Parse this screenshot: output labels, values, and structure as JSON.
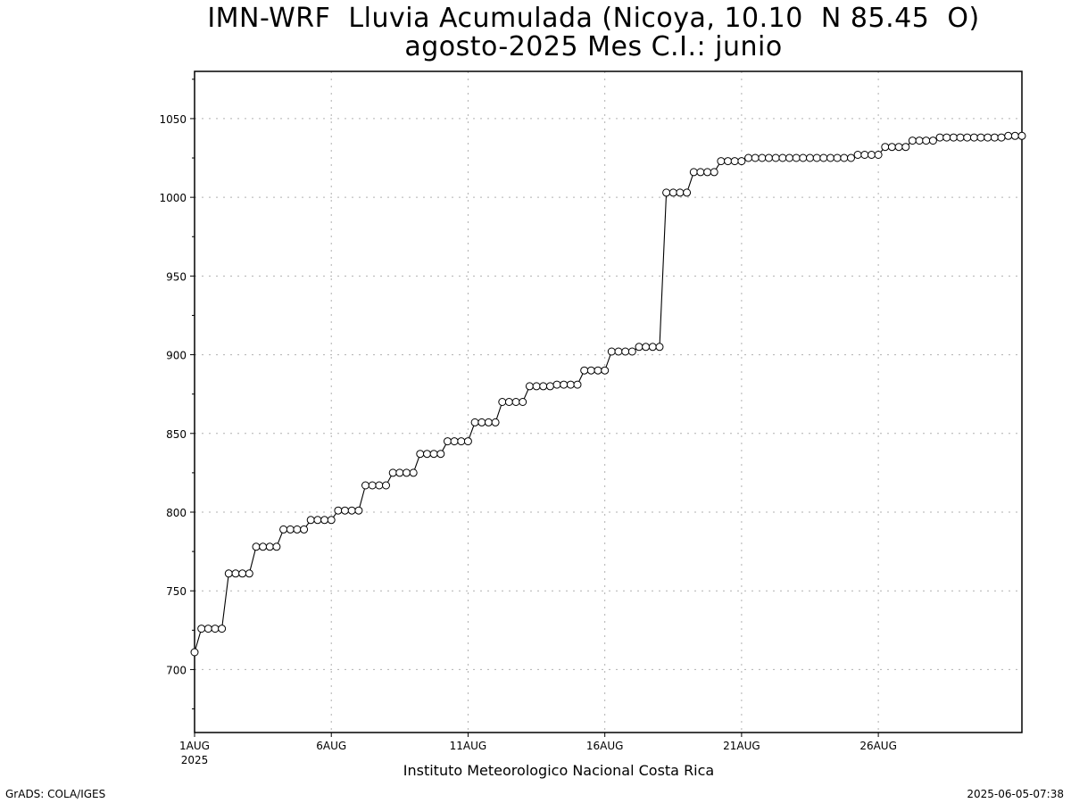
{
  "chart_data": {
    "type": "line",
    "title": "IMN-WRF  Lluvia Acumulada (Nicoya, 10.10  N 85.45  O)",
    "subtitle": "agosto-2025 Mes C.I.: junio",
    "xlabel": "Instituto Meteorologico Nacional Costa Rica",
    "ylabel": "",
    "x_unit": "day of August 2025",
    "xlim": [
      1,
      31.25
    ],
    "ylim": [
      660,
      1080
    ],
    "x_ticks": [
      {
        "value": 1,
        "label": "1AUG",
        "sublabel": "2025"
      },
      {
        "value": 6,
        "label": "6AUG"
      },
      {
        "value": 11,
        "label": "11AUG"
      },
      {
        "value": 16,
        "label": "16AUG"
      },
      {
        "value": 21,
        "label": "21AUG"
      },
      {
        "value": 26,
        "label": "26AUG"
      }
    ],
    "y_ticks": [
      700,
      750,
      800,
      850,
      900,
      950,
      1000,
      1050
    ],
    "grid": true,
    "marker": "open-circle",
    "series": [
      {
        "name": "",
        "values_step_hours": 6,
        "values": [
          711,
          726,
          726,
          726,
          726,
          761,
          761,
          761,
          761,
          778,
          778,
          778,
          778,
          789,
          789,
          789,
          789,
          795,
          795,
          795,
          795,
          801,
          801,
          801,
          801,
          817,
          817,
          817,
          817,
          825,
          825,
          825,
          825,
          837,
          837,
          837,
          837,
          845,
          845,
          845,
          845,
          857,
          857,
          857,
          857,
          870,
          870,
          870,
          870,
          880,
          880,
          880,
          880,
          881,
          881,
          881,
          881,
          890,
          890,
          890,
          890,
          902,
          902,
          902,
          902,
          905,
          905,
          905,
          905,
          1003,
          1003,
          1003,
          1003,
          1016,
          1016,
          1016,
          1016,
          1023,
          1023,
          1023,
          1023,
          1025,
          1025,
          1025,
          1025,
          1025,
          1025,
          1025,
          1025,
          1025,
          1025,
          1025,
          1025,
          1025,
          1025,
          1025,
          1025,
          1027,
          1027,
          1027,
          1027,
          1032,
          1032,
          1032,
          1032,
          1036,
          1036,
          1036,
          1036,
          1038,
          1038,
          1038,
          1038,
          1038,
          1038,
          1038,
          1038,
          1038,
          1038,
          1039,
          1039,
          1039
        ]
      }
    ]
  },
  "footer": {
    "left": "GrADS: COLA/IGES",
    "right": "2025-06-05-07:38"
  },
  "colors": {
    "line": "#000000",
    "marker_fill": "#ffffff",
    "grid": "#b0b0b0",
    "frame": "#000000"
  }
}
